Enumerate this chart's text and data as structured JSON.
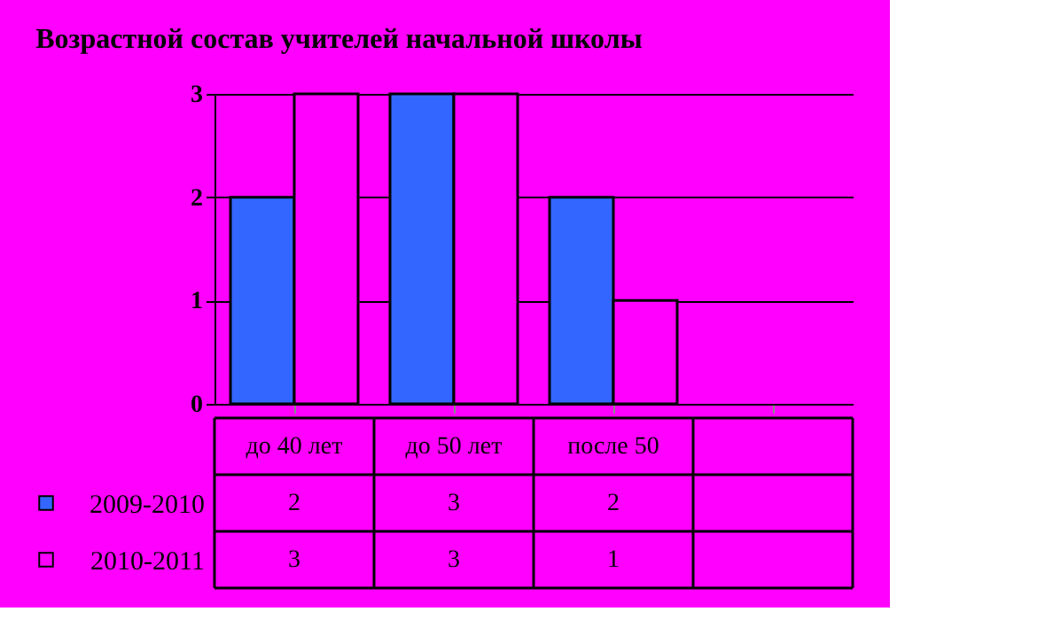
{
  "chart_data": {
    "type": "bar",
    "title": "Возрастной состав учителей начальной школы",
    "categories": [
      "до 40 лет",
      "до 50 лет",
      "после 50",
      null
    ],
    "series": [
      {
        "name": "2009-2010",
        "color": "#3366ff",
        "values": [
          2,
          3,
          2,
          null
        ]
      },
      {
        "name": "2010-2011",
        "color": "#ff00ff",
        "values": [
          3,
          3,
          1,
          null
        ]
      }
    ],
    "ylim": [
      0,
      3
    ],
    "yticks": [
      0,
      1,
      2,
      3
    ],
    "grid": "y",
    "data_labels": true,
    "legend": "bottom left"
  }
}
